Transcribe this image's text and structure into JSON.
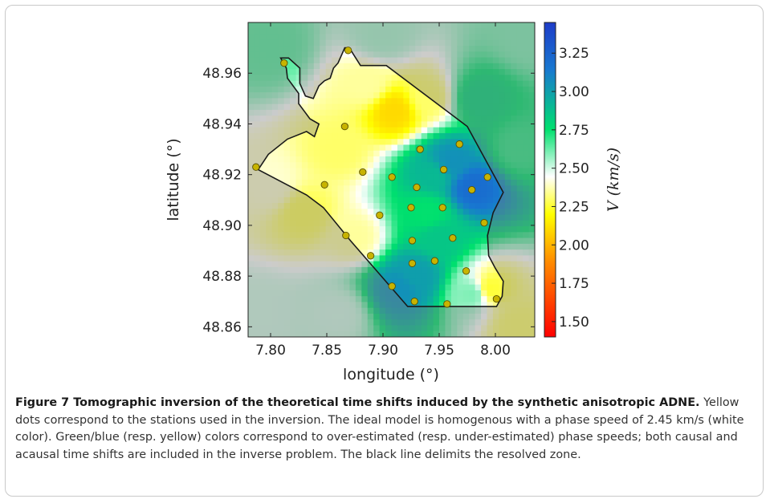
{
  "chart_data": {
    "type": "heatmap",
    "xlabel": "longitude (°)",
    "ylabel": "latitude (°)",
    "xlim": [
      7.78,
      8.035
    ],
    "ylim": [
      48.856,
      48.98
    ],
    "xticks": [
      "7.80",
      "7.85",
      "7.90",
      "7.95",
      "8.00"
    ],
    "xtick_values": [
      7.8,
      7.85,
      7.9,
      7.95,
      8.0
    ],
    "yticks": [
      "48.86",
      "48.88",
      "48.90",
      "48.92",
      "48.94",
      "48.96"
    ],
    "ytick_values": [
      48.86,
      48.88,
      48.9,
      48.92,
      48.94,
      48.96
    ],
    "colorbar": {
      "label": "V (km/s)",
      "range": [
        1.4,
        3.45
      ],
      "ticks": [
        "1.50",
        "1.75",
        "2.00",
        "2.25",
        "2.50",
        "2.75",
        "3.00",
        "3.25"
      ],
      "tick_values": [
        1.5,
        1.75,
        2.0,
        2.25,
        2.5,
        2.75,
        3.0,
        3.25
      ],
      "colors": [
        "#ff0000",
        "#ff8c00",
        "#ffff00",
        "#ffffff",
        "#00e06e",
        "#1878d0",
        "#1e3cc8"
      ]
    },
    "stations": [
      {
        "lon": 7.812,
        "lat": 48.964
      },
      {
        "lon": 7.869,
        "lat": 48.969
      },
      {
        "lon": 7.787,
        "lat": 48.923
      },
      {
        "lon": 7.848,
        "lat": 48.916
      },
      {
        "lon": 7.866,
        "lat": 48.939
      },
      {
        "lon": 7.882,
        "lat": 48.921
      },
      {
        "lon": 7.908,
        "lat": 48.919
      },
      {
        "lon": 7.867,
        "lat": 48.896
      },
      {
        "lon": 7.933,
        "lat": 48.93
      },
      {
        "lon": 7.968,
        "lat": 48.932
      },
      {
        "lon": 7.954,
        "lat": 48.922
      },
      {
        "lon": 7.993,
        "lat": 48.919
      },
      {
        "lon": 7.93,
        "lat": 48.915
      },
      {
        "lon": 7.979,
        "lat": 48.914
      },
      {
        "lon": 7.925,
        "lat": 48.907
      },
      {
        "lon": 7.953,
        "lat": 48.907
      },
      {
        "lon": 7.897,
        "lat": 48.904
      },
      {
        "lon": 7.962,
        "lat": 48.895
      },
      {
        "lon": 7.99,
        "lat": 48.901
      },
      {
        "lon": 7.926,
        "lat": 48.894
      },
      {
        "lon": 7.889,
        "lat": 48.888
      },
      {
        "lon": 7.926,
        "lat": 48.885
      },
      {
        "lon": 7.946,
        "lat": 48.886
      },
      {
        "lon": 7.974,
        "lat": 48.882
      },
      {
        "lon": 7.908,
        "lat": 48.876
      },
      {
        "lon": 7.928,
        "lat": 48.87
      },
      {
        "lon": 7.957,
        "lat": 48.869
      },
      {
        "lon": 8.001,
        "lat": 48.871
      }
    ],
    "resolved_zone": [
      [
        7.809,
        48.966
      ],
      [
        7.816,
        48.966
      ],
      [
        7.826,
        48.962
      ],
      [
        7.826,
        48.956
      ],
      [
        7.831,
        48.951
      ],
      [
        7.838,
        48.95
      ],
      [
        7.843,
        48.955
      ],
      [
        7.848,
        48.957
      ],
      [
        7.853,
        48.958
      ],
      [
        7.856,
        48.962
      ],
      [
        7.86,
        48.964
      ],
      [
        7.866,
        48.97
      ],
      [
        7.87,
        48.97
      ],
      [
        7.88,
        48.963
      ],
      [
        7.903,
        48.963
      ],
      [
        7.975,
        48.939
      ],
      [
        8.007,
        48.913
      ],
      [
        7.998,
        48.905
      ],
      [
        7.993,
        48.896
      ],
      [
        7.994,
        48.888
      ],
      [
        8.0,
        48.883
      ],
      [
        8.007,
        48.878
      ],
      [
        8.006,
        48.872
      ],
      [
        8.001,
        48.868
      ],
      [
        7.922,
        48.868
      ],
      [
        7.871,
        48.894
      ],
      [
        7.847,
        48.907
      ],
      [
        7.832,
        48.912
      ],
      [
        7.789,
        48.922
      ],
      [
        7.798,
        48.928
      ],
      [
        7.815,
        48.934
      ],
      [
        7.832,
        48.937
      ],
      [
        7.839,
        48.935
      ],
      [
        7.843,
        48.94
      ],
      [
        7.835,
        48.942
      ],
      [
        7.825,
        48.948
      ],
      [
        7.825,
        48.952
      ],
      [
        7.815,
        48.958
      ],
      [
        7.814,
        48.962
      ]
    ],
    "velocity_anchors": [
      {
        "lon": 7.86,
        "lat": 48.93,
        "v": 2.3
      },
      {
        "lon": 7.885,
        "lat": 48.955,
        "v": 2.35
      },
      {
        "lon": 7.91,
        "lat": 48.945,
        "v": 2.1
      },
      {
        "lon": 7.94,
        "lat": 48.95,
        "v": 2.3
      },
      {
        "lon": 7.83,
        "lat": 48.905,
        "v": 2.28
      },
      {
        "lon": 7.8,
        "lat": 48.915,
        "v": 2.4
      },
      {
        "lon": 7.875,
        "lat": 48.895,
        "v": 2.35
      },
      {
        "lon": 7.94,
        "lat": 48.905,
        "v": 2.75
      },
      {
        "lon": 7.945,
        "lat": 48.92,
        "v": 2.9
      },
      {
        "lon": 7.96,
        "lat": 48.925,
        "v": 3.05
      },
      {
        "lon": 7.98,
        "lat": 48.915,
        "v": 3.2
      },
      {
        "lon": 7.93,
        "lat": 48.88,
        "v": 3.0
      },
      {
        "lon": 7.915,
        "lat": 48.875,
        "v": 3.05
      },
      {
        "lon": 7.95,
        "lat": 48.895,
        "v": 2.85
      },
      {
        "lon": 7.995,
        "lat": 48.875,
        "v": 2.25
      },
      {
        "lon": 7.98,
        "lat": 48.873,
        "v": 2.6
      },
      {
        "lon": 8.02,
        "lat": 48.93,
        "v": 2.7
      },
      {
        "lon": 7.8,
        "lat": 48.97,
        "v": 2.65
      },
      {
        "lon": 7.79,
        "lat": 48.865,
        "v": 2.5
      },
      {
        "lon": 8.02,
        "lat": 48.86,
        "v": 2.3
      },
      {
        "lon": 7.86,
        "lat": 48.865,
        "v": 2.5
      },
      {
        "lon": 8.03,
        "lat": 48.975,
        "v": 2.6
      },
      {
        "lon": 7.985,
        "lat": 48.95,
        "v": 2.8
      },
      {
        "lon": 7.9,
        "lat": 48.975,
        "v": 2.55
      }
    ]
  },
  "caption": {
    "title": "Figure 7 Tomographic inversion of the theoretical time shifts induced by the synthetic anisotropic ADNE.",
    "body": " Yellow dots correspond to the stations used in the inversion. The ideal model is homogenous with a phase speed of 2.45 km/s (white color). Green/blue (resp. yellow) colors correspond to over-estimated (resp. under-estimated) phase speeds; both causal and acausal time shifts are included in the inverse problem. The black line delimits the resolved zone."
  }
}
